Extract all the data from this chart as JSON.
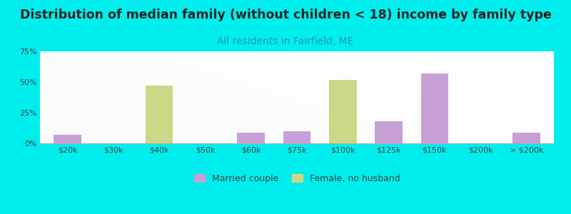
{
  "title": "Distribution of median family (without children < 18) income by family type",
  "subtitle": "All residents in Fairfield, ME",
  "categories": [
    "$20k",
    "$30k",
    "$40k",
    "$50k",
    "$60k",
    "$75k",
    "$100k",
    "$125k",
    "$150k",
    "$200k",
    "> $200k"
  ],
  "married_couple": [
    7,
    0,
    0,
    0,
    9,
    10,
    0,
    18,
    57,
    0,
    9
  ],
  "female_no_husband": [
    0,
    0,
    47,
    0,
    0,
    0,
    52,
    0,
    0,
    0,
    0
  ],
  "married_color": "#c8a0d8",
  "female_color": "#ccd888",
  "background_color": "#00eeee",
  "title_color": "#222222",
  "subtitle_color": "#2299aa",
  "ylim": [
    0,
    75
  ],
  "yticks": [
    0,
    25,
    50,
    75
  ],
  "bar_width": 0.6,
  "title_fontsize": 12.5,
  "subtitle_fontsize": 10
}
